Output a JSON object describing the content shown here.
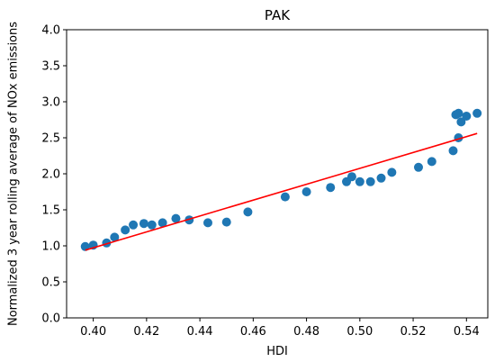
{
  "chart_data": {
    "type": "scatter",
    "title": "PAK",
    "xlabel": "HDI",
    "ylabel": "Normalized 3 year rolling average of NOx emissions",
    "xlim": [
      0.39,
      0.548
    ],
    "ylim": [
      0.0,
      4.0
    ],
    "xticks": [
      "0.40",
      "0.42",
      "0.44",
      "0.46",
      "0.48",
      "0.50",
      "0.52",
      "0.54"
    ],
    "yticks": [
      "0.0",
      "0.5",
      "1.0",
      "1.5",
      "2.0",
      "2.5",
      "3.0",
      "3.5",
      "4.0"
    ],
    "grid": false,
    "legend": "none",
    "colors": {
      "points": "#1f77b4",
      "fit_line": "#ff0000"
    },
    "series": [
      {
        "kind": "points",
        "x": [
          0.397,
          0.4,
          0.405,
          0.408,
          0.412,
          0.415,
          0.419,
          0.422,
          0.426,
          0.431,
          0.436,
          0.443,
          0.45,
          0.458,
          0.472,
          0.48,
          0.489,
          0.495,
          0.497,
          0.5,
          0.504,
          0.508,
          0.512,
          0.522,
          0.527,
          0.535,
          0.536,
          0.537,
          0.537,
          0.538,
          0.54,
          0.544
        ],
        "y": [
          0.99,
          1.01,
          1.04,
          1.12,
          1.22,
          1.29,
          1.31,
          1.29,
          1.32,
          1.38,
          1.36,
          1.32,
          1.33,
          1.47,
          1.68,
          1.75,
          1.81,
          1.89,
          1.96,
          1.89,
          1.89,
          1.94,
          2.02,
          2.09,
          2.17,
          2.32,
          2.82,
          2.84,
          2.5,
          2.72,
          2.8,
          2.84
        ]
      },
      {
        "kind": "fit_line",
        "x": [
          0.397,
          0.544
        ],
        "y": [
          0.94,
          2.56
        ]
      }
    ]
  }
}
